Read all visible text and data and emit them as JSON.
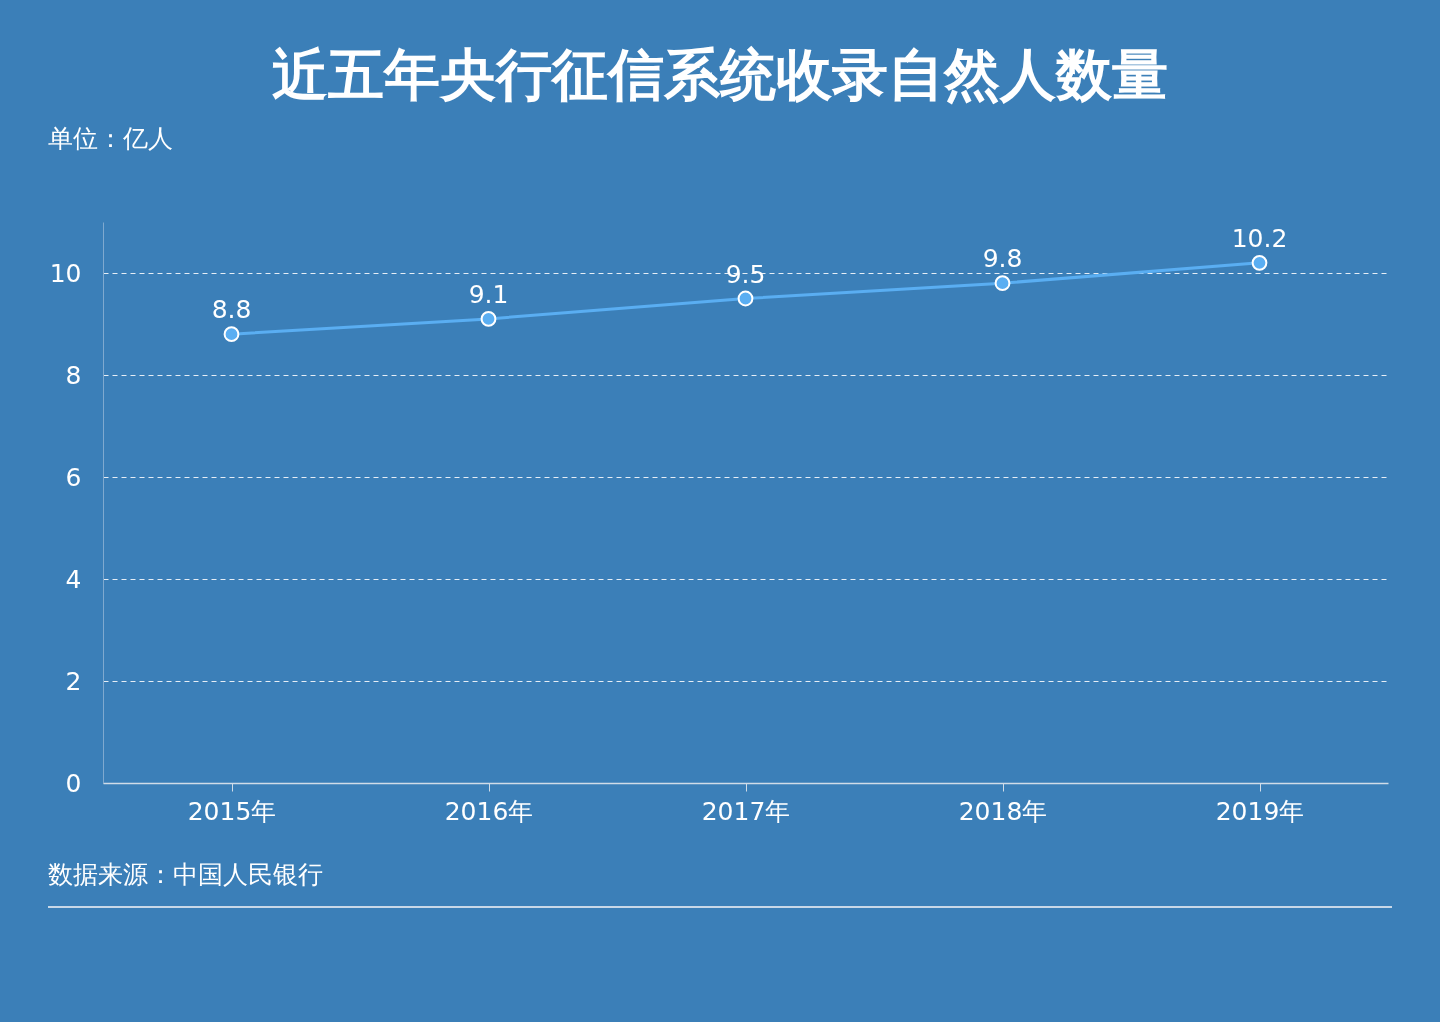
{
  "chart_data": {
    "type": "line",
    "title": "近五年央行征信系统收录自然人数量",
    "ylabel": "单位：亿人",
    "annotations": [
      "数据来源：中国人民银行"
    ],
    "categories": [
      "2015年",
      "2016年",
      "2017年",
      "2018年",
      "2019年"
    ],
    "series": [
      {
        "color": "#5aaef2",
        "values": [
          8.8,
          9.1,
          9.5,
          9.8,
          10.2
        ]
      }
    ],
    "ylim": [
      0,
      11
    ],
    "yticks": [
      0,
      2,
      4,
      6,
      8,
      10
    ],
    "grid": "y",
    "marker": "circle",
    "line_style": "solid",
    "data_labels": true
  }
}
